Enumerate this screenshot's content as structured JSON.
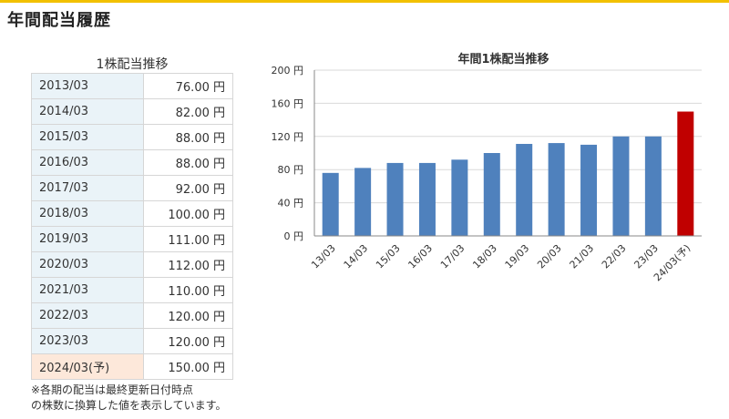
{
  "page_title": "年間配当履歴",
  "table": {
    "caption": "1株配当推移",
    "rows": [
      {
        "year": "2013/03",
        "value": "76.00 円"
      },
      {
        "year": "2014/03",
        "value": "82.00 円"
      },
      {
        "year": "2015/03",
        "value": "88.00 円"
      },
      {
        "year": "2016/03",
        "value": "88.00 円"
      },
      {
        "year": "2017/03",
        "value": "92.00 円"
      },
      {
        "year": "2018/03",
        "value": "100.00 円"
      },
      {
        "year": "2019/03",
        "value": "111.00 円"
      },
      {
        "year": "2020/03",
        "value": "112.00 円"
      },
      {
        "year": "2021/03",
        "value": "110.00 円"
      },
      {
        "year": "2022/03",
        "value": "120.00 円"
      },
      {
        "year": "2023/03",
        "value": "120.00 円"
      },
      {
        "year": "2024/03(予)",
        "value": "150.00 円",
        "forecast": true
      }
    ]
  },
  "note": {
    "line1": "※各期の配当は最終更新日付時点",
    "line2": "の株数に換算した値を表示しています。"
  },
  "chart_data": {
    "type": "bar",
    "title": "年間1株配当推移",
    "categories": [
      "13/03",
      "14/03",
      "15/03",
      "16/03",
      "17/03",
      "18/03",
      "19/03",
      "20/03",
      "21/03",
      "22/03",
      "23/03",
      "24/03(予)"
    ],
    "values": [
      76,
      82,
      88,
      88,
      92,
      100,
      111,
      112,
      110,
      120,
      120,
      150
    ],
    "forecast_index": 11,
    "ylim": [
      0,
      200
    ],
    "yticks": [
      0,
      40,
      80,
      120,
      160,
      200
    ],
    "ytick_suffix": " 円",
    "grid": true,
    "colors": {
      "bar": "#4f81bd",
      "forecast": "#c00000",
      "grid": "#d9d9d9",
      "axis": "#888888"
    }
  }
}
